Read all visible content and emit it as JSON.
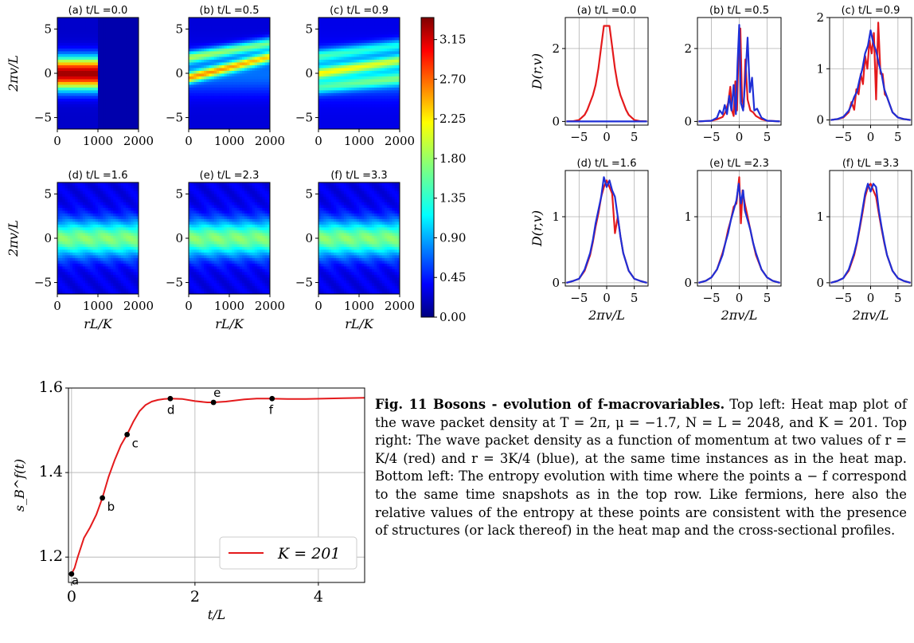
{
  "heatmaps": {
    "panels": [
      {
        "label": "(a) t/L =0.0",
        "t": 0.0
      },
      {
        "label": "(b) t/L =0.5",
        "t": 0.5
      },
      {
        "label": "(c) t/L =0.9",
        "t": 0.9
      },
      {
        "label": "(d) t/L =1.6",
        "t": 1.6
      },
      {
        "label": "(e) t/L =2.3",
        "t": 2.3
      },
      {
        "label": "(f) t/L =3.3",
        "t": 3.3
      }
    ],
    "ylabel": "2πv/L",
    "xlabel": "rL/K",
    "xticks": [
      "0",
      "1000",
      "2000"
    ],
    "yticks": [
      "5",
      "0",
      "−5"
    ],
    "xlim": [
      0,
      2048
    ],
    "ylim": [
      -6.3,
      6.3
    ],
    "colorbar": {
      "ticks": [
        "3.15",
        "2.70",
        "2.25",
        "1.80",
        "1.35",
        "0.90",
        "0.45",
        "0.00"
      ],
      "range": [
        0,
        3.4
      ],
      "colormap": "jet"
    }
  },
  "chart_data": [
    {
      "type": "line",
      "title": "(a) t/L =0.0",
      "ylabel": "D(r,v)",
      "xlabel": "",
      "xlim": [
        -7.5,
        7.5
      ],
      "ylim": [
        -0.1,
        2.85
      ],
      "xticks": [
        "−5",
        "0",
        "5"
      ],
      "yticks": [
        "0",
        "2"
      ],
      "grid": true,
      "series": [
        {
          "color": "#e41a1c",
          "x": [
            -7.3,
            -6,
            -5,
            -4,
            -3.5,
            -3,
            -2.5,
            -2,
            -1.5,
            -1,
            -0.5,
            0,
            0.5,
            1,
            1.5,
            2,
            2.5,
            3,
            3.5,
            4,
            5,
            6,
            7.3
          ],
          "y": [
            0,
            0.01,
            0.04,
            0.18,
            0.32,
            0.52,
            0.72,
            1.0,
            1.45,
            2.05,
            2.62,
            2.62,
            2.62,
            2.05,
            1.45,
            1.0,
            0.72,
            0.52,
            0.32,
            0.18,
            0.04,
            0.01,
            0
          ]
        },
        {
          "color": "#1f2fd6",
          "x": [
            -7.3,
            7.3
          ],
          "y": [
            0,
            0
          ]
        }
      ]
    },
    {
      "type": "line",
      "title": "(b) t/L =0.5",
      "ylabel": "",
      "xlabel": "",
      "xlim": [
        -7.5,
        7.5
      ],
      "ylim": [
        -0.1,
        2.85
      ],
      "xticks": [
        "−5",
        "0",
        "5"
      ],
      "yticks": [
        "0",
        "2"
      ],
      "grid": true,
      "series": [
        {
          "color": "#e41a1c",
          "x": [
            -7.3,
            -5,
            -4,
            -3,
            -2.5,
            -2,
            -1.6,
            -1.3,
            -1,
            -0.7,
            -0.4,
            -0.1,
            0.2,
            0.5,
            0.8,
            1.1,
            1.5,
            2,
            2.5,
            3,
            4,
            5,
            7.3
          ],
          "y": [
            0,
            0.02,
            0.06,
            0.12,
            0.25,
            0.5,
            0.95,
            0.3,
            0.15,
            1.1,
            0.3,
            2.1,
            2.55,
            0.6,
            0.4,
            1.7,
            0.6,
            0.3,
            0.25,
            0.15,
            0.06,
            0.02,
            0
          ]
        },
        {
          "color": "#1f2fd6",
          "x": [
            -7.3,
            -5,
            -4,
            -3.5,
            -3,
            -2.6,
            -2.2,
            -1.8,
            -1.4,
            -1,
            -0.6,
            -0.3,
            0,
            0.3,
            0.7,
            1.1,
            1.5,
            1.9,
            2.3,
            2.7,
            3.2,
            4,
            5,
            7.3
          ],
          "y": [
            0,
            0.02,
            0.1,
            0.3,
            0.2,
            0.45,
            0.2,
            0.7,
            0.3,
            1.0,
            0.2,
            1.6,
            2.65,
            0.5,
            0.3,
            1.2,
            2.3,
            0.8,
            1.2,
            0.3,
            0.35,
            0.1,
            0.02,
            0
          ]
        }
      ]
    },
    {
      "type": "line",
      "title": "(c) t/L =0.9",
      "ylabel": "",
      "xlabel": "",
      "xlim": [
        -7.5,
        7.5
      ],
      "ylim": [
        -0.1,
        2.0
      ],
      "xticks": [
        "−5",
        "0",
        "5"
      ],
      "yticks": [
        "0",
        "1",
        "2"
      ],
      "grid": true,
      "series": [
        {
          "color": "#e41a1c",
          "x": [
            -7.3,
            -6,
            -5,
            -4,
            -3.5,
            -3,
            -2.6,
            -2.2,
            -1.8,
            -1.4,
            -1,
            -0.6,
            -0.2,
            0.2,
            0.6,
            1,
            1.4,
            1.8,
            2.2,
            2.6,
            3,
            3.5,
            4,
            5,
            6,
            7.3
          ],
          "y": [
            0,
            0.02,
            0.05,
            0.15,
            0.35,
            0.2,
            0.6,
            0.5,
            0.9,
            0.7,
            1.25,
            1.0,
            1.55,
            1.3,
            1.7,
            0.4,
            1.9,
            0.9,
            0.9,
            0.5,
            0.45,
            0.3,
            0.15,
            0.05,
            0.02,
            0
          ]
        },
        {
          "color": "#1f2fd6",
          "x": [
            -7.3,
            -6,
            -5,
            -4,
            -3.5,
            -3,
            -2.5,
            -2,
            -1.5,
            -1,
            -0.5,
            0,
            0.5,
            1,
            1.5,
            2,
            2.5,
            3,
            3.5,
            4,
            5,
            6,
            7.3
          ],
          "y": [
            0,
            0.02,
            0.06,
            0.18,
            0.3,
            0.45,
            0.55,
            0.8,
            1.0,
            1.3,
            1.45,
            1.75,
            1.5,
            1.35,
            1.1,
            0.9,
            0.6,
            0.45,
            0.3,
            0.15,
            0.05,
            0.02,
            0
          ]
        }
      ]
    },
    {
      "type": "line",
      "title": "(d) t/L =1.6",
      "ylabel": "D(r,v)",
      "xlabel": "2πv/L",
      "xlim": [
        -7.5,
        7.5
      ],
      "ylim": [
        -0.05,
        1.7
      ],
      "xticks": [
        "−5",
        "0",
        "5"
      ],
      "yticks": [
        "0",
        "1"
      ],
      "grid": true,
      "series": [
        {
          "color": "#e41a1c",
          "x": [
            -7.3,
            -6,
            -5,
            -4,
            -3,
            -2.5,
            -2,
            -1.5,
            -1,
            -0.5,
            0,
            0.5,
            1,
            1.5,
            2,
            2.5,
            3,
            4,
            5,
            6,
            7.3
          ],
          "y": [
            0,
            0.03,
            0.06,
            0.18,
            0.42,
            0.62,
            0.85,
            1.05,
            1.3,
            1.45,
            1.55,
            1.45,
            1.35,
            0.75,
            1.0,
            0.7,
            0.45,
            0.18,
            0.06,
            0.03,
            0
          ]
        },
        {
          "color": "#1f2fd6",
          "x": [
            -7.3,
            -6,
            -5,
            -4,
            -3,
            -2.5,
            -2,
            -1.5,
            -1,
            -0.5,
            0,
            0.5,
            1,
            1.5,
            2,
            2.5,
            3,
            4,
            5,
            6,
            7.3
          ],
          "y": [
            0,
            0.03,
            0.06,
            0.2,
            0.45,
            0.65,
            0.9,
            1.1,
            1.3,
            1.6,
            1.45,
            1.55,
            1.4,
            1.3,
            1.0,
            0.7,
            0.45,
            0.18,
            0.06,
            0.03,
            0
          ]
        }
      ]
    },
    {
      "type": "line",
      "title": "(e) t/L =2.3",
      "ylabel": "",
      "xlabel": "2πv/L",
      "xlim": [
        -7.5,
        7.5
      ],
      "ylim": [
        -0.05,
        1.7
      ],
      "xticks": [
        "−5",
        "0",
        "5"
      ],
      "yticks": [
        "0",
        "1"
      ],
      "grid": true,
      "series": [
        {
          "color": "#e41a1c",
          "x": [
            -7.3,
            -6,
            -5,
            -4,
            -3,
            -2.5,
            -2,
            -1.5,
            -1,
            -0.5,
            0,
            0.3,
            0.6,
            1,
            1.5,
            2,
            2.5,
            3,
            4,
            5,
            6,
            7.3
          ],
          "y": [
            0,
            0.03,
            0.08,
            0.2,
            0.45,
            0.6,
            0.8,
            0.95,
            1.15,
            1.2,
            1.6,
            0.9,
            1.4,
            1.2,
            1.0,
            0.8,
            0.6,
            0.42,
            0.2,
            0.08,
            0.03,
            0
          ]
        },
        {
          "color": "#1f2fd6",
          "x": [
            -7.3,
            -6,
            -5,
            -4,
            -3,
            -2.5,
            -2,
            -1.5,
            -1,
            -0.5,
            -0.1,
            0.3,
            0.7,
            1,
            1.5,
            2,
            2.5,
            3,
            4,
            5,
            6,
            7.3
          ],
          "y": [
            0,
            0.03,
            0.08,
            0.2,
            0.42,
            0.6,
            0.75,
            0.95,
            1.1,
            1.25,
            1.5,
            1.2,
            1.4,
            1.1,
            0.95,
            0.8,
            0.6,
            0.45,
            0.2,
            0.08,
            0.03,
            0
          ]
        }
      ]
    },
    {
      "type": "line",
      "title": "(f) t/L =3.3",
      "ylabel": "",
      "xlabel": "2πv/L",
      "xlim": [
        -7.5,
        7.5
      ],
      "ylim": [
        -0.05,
        1.7
      ],
      "xticks": [
        "−5",
        "0",
        "5"
      ],
      "yticks": [
        "0",
        "1"
      ],
      "grid": true,
      "series": [
        {
          "color": "#e41a1c",
          "x": [
            -7.3,
            -6,
            -5,
            -4,
            -3,
            -2.5,
            -2,
            -1.5,
            -1,
            -0.5,
            0,
            0.5,
            1,
            1.5,
            2,
            2.5,
            3,
            4,
            5,
            6,
            7.3
          ],
          "y": [
            0,
            0.03,
            0.07,
            0.18,
            0.42,
            0.6,
            0.82,
            1.05,
            1.3,
            1.45,
            1.5,
            1.4,
            1.3,
            1.05,
            0.82,
            0.6,
            0.42,
            0.18,
            0.07,
            0.03,
            0
          ]
        },
        {
          "color": "#1f2fd6",
          "x": [
            -7.3,
            -6,
            -5,
            -4,
            -3,
            -2.5,
            -2,
            -1.5,
            -1,
            -0.5,
            0,
            0.5,
            1,
            1.5,
            2,
            2.5,
            3,
            4,
            5,
            6,
            7.3
          ],
          "y": [
            0,
            0.03,
            0.07,
            0.2,
            0.45,
            0.62,
            0.85,
            1.1,
            1.35,
            1.5,
            1.38,
            1.5,
            1.45,
            1.1,
            0.85,
            0.62,
            0.42,
            0.18,
            0.07,
            0.03,
            0
          ]
        }
      ]
    },
    {
      "type": "line",
      "title": "",
      "ylabel": "s_B^f(t)",
      "xlabel": "t/L",
      "xlim": [
        -0.05,
        4.75
      ],
      "ylim": [
        1.14,
        1.6
      ],
      "xticks": [
        "0",
        "2",
        "4"
      ],
      "yticks": [
        "1.2",
        "1.4",
        "1.6"
      ],
      "grid": true,
      "legend": {
        "position": "lower-right",
        "entries": [
          "K = 201"
        ]
      },
      "series": [
        {
          "name": "K = 201",
          "color": "#e41a1c",
          "x": [
            0,
            0.05,
            0.1,
            0.2,
            0.3,
            0.4,
            0.5,
            0.6,
            0.7,
            0.8,
            0.9,
            1.0,
            1.1,
            1.2,
            1.3,
            1.4,
            1.5,
            1.6,
            1.8,
            2.0,
            2.2,
            2.3,
            2.5,
            2.8,
            3.0,
            3.2,
            3.5,
            3.8,
            4.1,
            4.4,
            4.75
          ],
          "y": [
            1.16,
            1.175,
            1.2,
            1.245,
            1.27,
            1.3,
            1.34,
            1.39,
            1.43,
            1.465,
            1.49,
            1.52,
            1.545,
            1.56,
            1.568,
            1.572,
            1.574,
            1.575,
            1.574,
            1.569,
            1.566,
            1.566,
            1.568,
            1.573,
            1.575,
            1.575,
            1.574,
            1.574,
            1.575,
            1.576,
            1.577
          ]
        }
      ],
      "points": [
        {
          "label": "a",
          "x": 0.0,
          "y": 1.16
        },
        {
          "label": "b",
          "x": 0.5,
          "y": 1.34
        },
        {
          "label": "c",
          "x": 0.9,
          "y": 1.49
        },
        {
          "label": "d",
          "x": 1.6,
          "y": 1.575
        },
        {
          "label": "e",
          "x": 2.3,
          "y": 1.566
        },
        {
          "label": "f",
          "x": 3.25,
          "y": 1.575
        }
      ]
    }
  ],
  "caption": {
    "title": "Fig. 11  Bosons - evolution of f-macrovariables.",
    "body": "Top left: Heat map plot of the wave packet density at T = 2π, μ = −1.7, N = L = 2048, and K = 201. Top right: The wave packet density as a function of momentum at two values of r = K/4 (red) and r = 3K/4 (blue), at the same time instances as in the heat map. Bottom left: The entropy evolution with time where the points a − f correspond to the same time snapshots as in the top row. Like fermions, here also the relative values of the entropy at these points are consistent with the presence of structures (or lack thereof) in the heat map and the cross-sectional profiles."
  }
}
